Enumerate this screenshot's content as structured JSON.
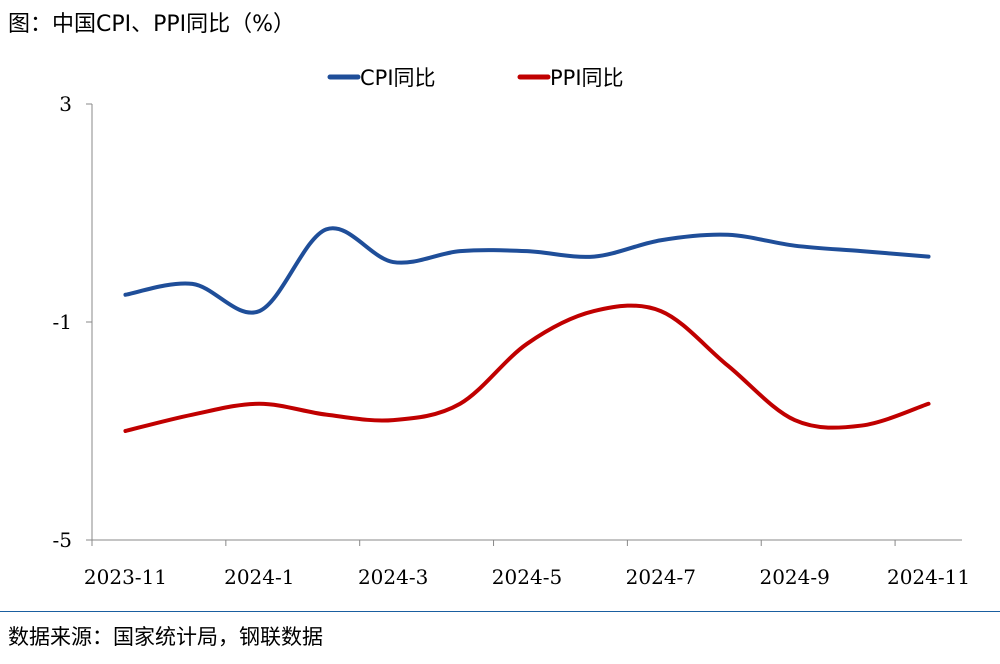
{
  "figure": {
    "title": "图：中国CPI、PPI同比（%）",
    "source": "数据来源：国家统计局，钢联数据"
  },
  "chart_data": {
    "type": "line",
    "title": "中国CPI、PPI同比（%）",
    "xlabel": "",
    "ylabel": "",
    "ylim": [
      -5,
      3
    ],
    "yticks": [
      3,
      -1,
      -5
    ],
    "categories": [
      "2023-11",
      "2023-12",
      "2024-1",
      "2024-2",
      "2024-3",
      "2024-4",
      "2024-5",
      "2024-6",
      "2024-7",
      "2024-8",
      "2024-9",
      "2024-10",
      "2024-11"
    ],
    "xtick_labels": [
      "2023-11",
      "2024-1",
      "2024-3",
      "2024-5",
      "2024-7",
      "2024-9",
      "2024-11"
    ],
    "legend_position": "top",
    "grid": false,
    "series": [
      {
        "name": "CPI同比",
        "color": "#1f4e99",
        "values": [
          -0.5,
          -0.3,
          -0.8,
          0.7,
          0.1,
          0.3,
          0.3,
          0.2,
          0.5,
          0.6,
          0.4,
          0.3,
          0.2
        ]
      },
      {
        "name": "PPI同比",
        "color": "#c00000",
        "values": [
          -3.0,
          -2.7,
          -2.5,
          -2.7,
          -2.8,
          -2.5,
          -1.4,
          -0.8,
          -0.8,
          -1.8,
          -2.8,
          -2.9,
          -2.5
        ]
      }
    ]
  }
}
